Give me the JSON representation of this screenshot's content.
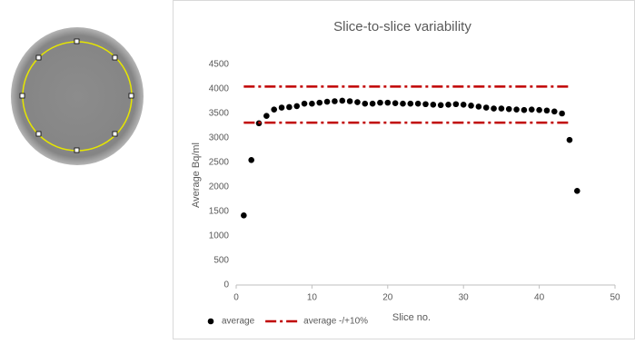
{
  "chart_data": {
    "type": "scatter",
    "title": "Slice-to-slice variability",
    "x_label": "Slice no.",
    "y_label": "Average Bq/ml",
    "xlim": [
      0,
      50
    ],
    "xticks": [
      0,
      10,
      20,
      30,
      40,
      50
    ],
    "ylim": [
      0,
      4500
    ],
    "yticks": [
      0,
      500,
      1000,
      1500,
      2000,
      2500,
      3000,
      3500,
      4000,
      4500
    ],
    "grid": false,
    "legend": "bottom-left",
    "series": [
      {
        "name": "average",
        "color": "#000000",
        "x": [
          1,
          2,
          3,
          4,
          5,
          6,
          7,
          8,
          9,
          10,
          11,
          12,
          13,
          14,
          15,
          16,
          17,
          18,
          19,
          20,
          21,
          22,
          23,
          24,
          25,
          26,
          27,
          28,
          29,
          30,
          31,
          32,
          33,
          34,
          35,
          36,
          37,
          38,
          39,
          40,
          41,
          42,
          43,
          44,
          45
        ],
        "values": [
          1420,
          2550,
          3300,
          3450,
          3580,
          3620,
          3630,
          3650,
          3700,
          3700,
          3720,
          3740,
          3750,
          3760,
          3750,
          3730,
          3700,
          3700,
          3720,
          3720,
          3710,
          3700,
          3700,
          3700,
          3690,
          3680,
          3670,
          3680,
          3690,
          3680,
          3660,
          3640,
          3620,
          3600,
          3600,
          3590,
          3580,
          3570,
          3580,
          3570,
          3560,
          3540,
          3500,
          2960,
          1920
        ]
      },
      {
        "name": "average -/+10%",
        "color": "#c00000",
        "style": "dashdot",
        "x": [
          1,
          44
        ],
        "upper": [
          4048,
          4048
        ],
        "lower": [
          3312,
          3312
        ]
      }
    ]
  }
}
